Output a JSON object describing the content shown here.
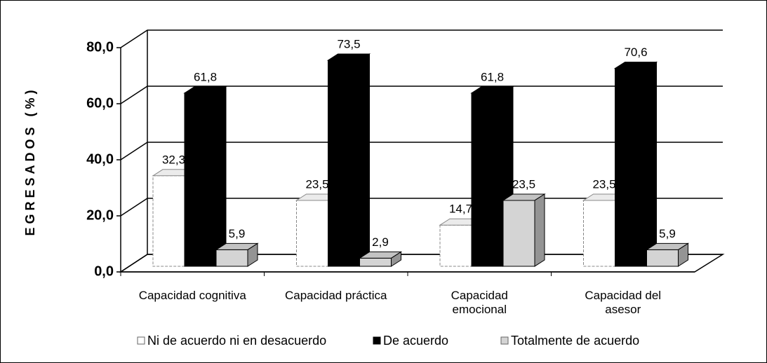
{
  "chart_data": {
    "type": "bar3d",
    "y_label": "EGRESADOS (%)",
    "categories": [
      "Capacidad cognitiva",
      "Capacidad práctica",
      "Capacidad\nemocional",
      "Capacidad del\nasesor"
    ],
    "series": [
      {
        "name": "Ni de acuerdo ni en desacuerdo",
        "color": "#ffffff",
        "values": [
          32.3,
          23.5,
          14.7,
          23.5
        ],
        "value_labels": [
          "32,3",
          "23,5",
          "14,7",
          "23,5"
        ]
      },
      {
        "name": "De acuerdo",
        "color": "#000000",
        "values": [
          61.8,
          73.5,
          61.8,
          70.6
        ],
        "value_labels": [
          "61,8",
          "73,5",
          "61,8",
          "70,6"
        ]
      },
      {
        "name": "Totalmente de acuerdo",
        "color": "#d4d4d4",
        "values": [
          5.9,
          2.9,
          23.5,
          5.9
        ],
        "value_labels": [
          "5,9",
          "2,9",
          "23,5",
          "5,9"
        ]
      }
    ],
    "ylim": [
      0,
      80
    ],
    "yticks": [
      {
        "value": 0,
        "label": "0,0"
      },
      {
        "value": 20,
        "label": "20,0"
      },
      {
        "value": 40,
        "label": "40,0"
      },
      {
        "value": 60,
        "label": "60,0"
      },
      {
        "value": 80,
        "label": "80,0"
      }
    ],
    "grid": true,
    "legend": "bottom"
  }
}
